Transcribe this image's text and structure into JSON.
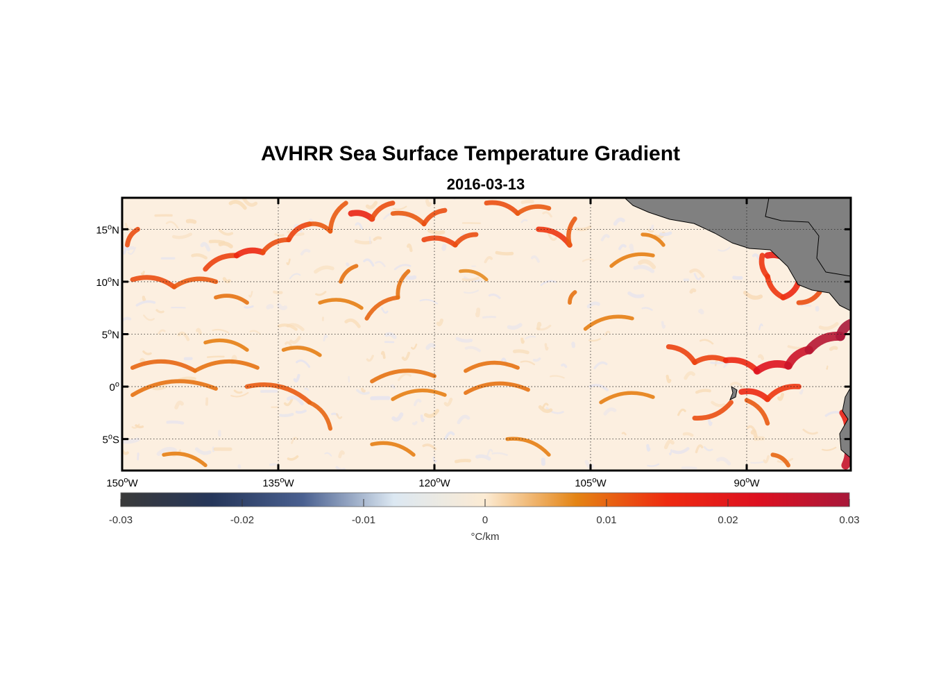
{
  "title": "AVHRR Sea Surface Temperature Gradient",
  "subtitle": "2016-03-13",
  "chart_data": {
    "type": "heatmap",
    "region": {
      "lon_range": [
        -150,
        -80
      ],
      "lat_range": [
        -8,
        18
      ]
    },
    "lon_ticks": [
      {
        "value": -150,
        "num": "150",
        "hemi": "W"
      },
      {
        "value": -135,
        "num": "135",
        "hemi": "W"
      },
      {
        "value": -120,
        "num": "120",
        "hemi": "W"
      },
      {
        "value": -105,
        "num": "105",
        "hemi": "W"
      },
      {
        "value": -90,
        "num": "90",
        "hemi": "W"
      }
    ],
    "lat_ticks": [
      {
        "value": 15,
        "num": "15",
        "hemi": "N"
      },
      {
        "value": 10,
        "num": "10",
        "hemi": "N"
      },
      {
        "value": 5,
        "num": "5",
        "hemi": "N"
      },
      {
        "value": 0,
        "num": "0",
        "hemi": ""
      },
      {
        "value": -5,
        "num": "5",
        "hemi": "S"
      }
    ],
    "grid": true,
    "colorbar": {
      "range": [
        -0.03,
        0.03
      ],
      "ticks": [
        "-0.03",
        "-0.02",
        "-0.01",
        "0",
        "0.01",
        "0.02",
        "0.03"
      ],
      "label": "°C/km",
      "placement": "bottom",
      "colors": [
        "#3a3a3a",
        "#25365a",
        "#4a6090",
        "#dce8f2",
        "#fcebd3",
        "#e48414",
        "#ee2a10",
        "#dd1020",
        "#a8183a"
      ]
    },
    "land_color": "#808080",
    "fronts": [
      {
        "lon": -149.5,
        "lat": 13.5,
        "lon2": -148.5,
        "lat2": 15.0,
        "v": 0.012
      },
      {
        "lon": -149.0,
        "lat": 10.2,
        "lon2": -145.0,
        "lat2": 9.5,
        "v": 0.012
      },
      {
        "lon": -145.0,
        "lat": 9.5,
        "lon2": -141.0,
        "lat2": 10.0,
        "v": 0.011
      },
      {
        "lon": -142.0,
        "lat": 11.2,
        "lon2": -139.0,
        "lat2": 12.5,
        "v": 0.013
      },
      {
        "lon": -139.0,
        "lat": 12.5,
        "lon2": -136.5,
        "lat2": 12.8,
        "v": 0.016
      },
      {
        "lon": -136.5,
        "lat": 12.8,
        "lon2": -134.0,
        "lat2": 14.0,
        "v": 0.012
      },
      {
        "lon": -134.0,
        "lat": 14.0,
        "lon2": -132.0,
        "lat2": 15.5,
        "v": 0.013
      },
      {
        "lon": -132.0,
        "lat": 15.5,
        "lon2": -130.0,
        "lat2": 14.8,
        "v": 0.011
      },
      {
        "lon": -130.0,
        "lat": 14.8,
        "lon2": -128.5,
        "lat2": 17.5,
        "v": 0.011
      },
      {
        "lon": -128.0,
        "lat": 16.5,
        "lon2": -126.0,
        "lat2": 16.0,
        "v": 0.017
      },
      {
        "lon": -126.0,
        "lat": 16.0,
        "lon2": -124.0,
        "lat2": 17.5,
        "v": 0.012
      },
      {
        "lon": -124.0,
        "lat": 16.5,
        "lon2": -121.0,
        "lat2": 15.5,
        "v": 0.011
      },
      {
        "lon": -121.0,
        "lat": 15.5,
        "lon2": -119.0,
        "lat2": 16.8,
        "v": 0.012
      },
      {
        "lon": -121.0,
        "lat": 14.0,
        "lon2": -118.0,
        "lat2": 13.5,
        "v": 0.013
      },
      {
        "lon": -118.0,
        "lat": 13.5,
        "lon2": -116.0,
        "lat2": 14.5,
        "v": 0.012
      },
      {
        "lon": -115.0,
        "lat": 17.5,
        "lon2": -112.0,
        "lat2": 16.5,
        "v": 0.012
      },
      {
        "lon": -112.0,
        "lat": 16.5,
        "lon2": -109.0,
        "lat2": 17.0,
        "v": 0.011
      },
      {
        "lon": -110.0,
        "lat": 15.0,
        "lon2": -107.0,
        "lat2": 13.5,
        "v": 0.014
      },
      {
        "lon": -107.0,
        "lat": 13.5,
        "lon2": -106.5,
        "lat2": 16.0,
        "v": 0.011
      },
      {
        "lon": -141.0,
        "lat": 8.5,
        "lon2": -138.0,
        "lat2": 8.0,
        "v": 0.009
      },
      {
        "lon": -131.0,
        "lat": 8.0,
        "lon2": -127.0,
        "lat2": 7.5,
        "v": 0.008
      },
      {
        "lon": -126.5,
        "lat": 6.5,
        "lon2": -123.5,
        "lat2": 8.5,
        "v": 0.01
      },
      {
        "lon": -123.5,
        "lat": 8.5,
        "lon2": -122.5,
        "lat2": 11.0,
        "v": 0.009
      },
      {
        "lon": -149.0,
        "lat": 1.8,
        "lon2": -143.0,
        "lat2": 1.5,
        "v": 0.01
      },
      {
        "lon": -143.0,
        "lat": 1.5,
        "lon2": -137.0,
        "lat2": 1.8,
        "v": 0.009
      },
      {
        "lon": -149.0,
        "lat": -0.8,
        "lon2": -141.0,
        "lat2": -0.2,
        "v": 0.009
      },
      {
        "lon": -138.0,
        "lat": 0.0,
        "lon2": -132.0,
        "lat2": -1.5,
        "v": 0.011
      },
      {
        "lon": -132.0,
        "lat": -1.5,
        "lon2": -130.0,
        "lat2": -4.0,
        "v": 0.01
      },
      {
        "lon": -142.0,
        "lat": 4.2,
        "lon2": -138.0,
        "lat2": 3.5,
        "v": 0.008
      },
      {
        "lon": -134.5,
        "lat": 3.5,
        "lon2": -131.0,
        "lat2": 3.0,
        "v": 0.008
      },
      {
        "lon": -126.0,
        "lat": 0.5,
        "lon2": -120.0,
        "lat2": 1.0,
        "v": 0.009
      },
      {
        "lon": -117.0,
        "lat": 1.5,
        "lon2": -112.0,
        "lat2": 1.8,
        "v": 0.009
      },
      {
        "lon": -117.0,
        "lat": -0.6,
        "lon2": -111.0,
        "lat2": -0.3,
        "v": 0.009
      },
      {
        "lon": -124.0,
        "lat": -1.2,
        "lon2": -119.0,
        "lat2": -0.8,
        "v": 0.008
      },
      {
        "lon": -146.0,
        "lat": -6.5,
        "lon2": -142.0,
        "lat2": -7.5,
        "v": 0.008
      },
      {
        "lon": -126.0,
        "lat": -5.5,
        "lon2": -122.0,
        "lat2": -6.5,
        "v": 0.008
      },
      {
        "lon": -113.0,
        "lat": -5.0,
        "lon2": -109.0,
        "lat2": -6.5,
        "v": 0.008
      },
      {
        "lon": -104.0,
        "lat": -1.5,
        "lon2": -99.0,
        "lat2": -1.0,
        "v": 0.008
      },
      {
        "lon": -105.5,
        "lat": 5.5,
        "lon2": -101.0,
        "lat2": 6.5,
        "v": 0.008
      },
      {
        "lon": -103.0,
        "lat": 11.5,
        "lon2": -99.0,
        "lat2": 12.5,
        "v": 0.008
      },
      {
        "lon": -107.0,
        "lat": 8.0,
        "lon2": -106.5,
        "lat2": 9.0,
        "v": 0.009
      },
      {
        "lon": -97.5,
        "lat": 3.8,
        "lon2": -95.0,
        "lat2": 2.3,
        "v": 0.013
      },
      {
        "lon": -95.0,
        "lat": 2.3,
        "lon2": -92.0,
        "lat2": 2.5,
        "v": 0.013
      },
      {
        "lon": -92.0,
        "lat": 2.5,
        "lon2": -89.0,
        "lat2": 1.5,
        "v": 0.016
      },
      {
        "lon": -89.0,
        "lat": 1.5,
        "lon2": -86.0,
        "lat2": 2.0,
        "v": 0.022
      },
      {
        "lon": -86.0,
        "lat": 2.0,
        "lon2": -84.0,
        "lat2": 3.5,
        "v": 0.025
      },
      {
        "lon": -84.0,
        "lat": 3.5,
        "lon2": -81.0,
        "lat2": 4.8,
        "v": 0.028
      },
      {
        "lon": -81.0,
        "lat": 4.8,
        "lon2": -80.0,
        "lat2": 6.0,
        "v": 0.03
      },
      {
        "lon": -90.5,
        "lat": -0.5,
        "lon2": -88.0,
        "lat2": -1.2,
        "v": 0.016
      },
      {
        "lon": -88.0,
        "lat": -1.2,
        "lon2": -85.0,
        "lat2": 0.0,
        "v": 0.014
      },
      {
        "lon": -91.5,
        "lat": -1.5,
        "lon2": -95.0,
        "lat2": -3.0,
        "v": 0.012
      },
      {
        "lon": -90.0,
        "lat": -1.3,
        "lon2": -88.0,
        "lat2": -3.5,
        "v": 0.011
      },
      {
        "lon": -88.0,
        "lat": 12.5,
        "lon2": -86.0,
        "lat2": 12.0,
        "v": 0.018
      },
      {
        "lon": -86.0,
        "lat": 12.0,
        "lon2": -85.0,
        "lat2": 10.0,
        "v": 0.018
      },
      {
        "lon": -85.0,
        "lat": 10.0,
        "lon2": -86.5,
        "lat2": 8.5,
        "v": 0.016
      },
      {
        "lon": -86.5,
        "lat": 8.5,
        "lon2": -88.0,
        "lat2": 10.5,
        "v": 0.014
      },
      {
        "lon": -88.0,
        "lat": 10.5,
        "lon2": -88.5,
        "lat2": 12.5,
        "v": 0.014
      },
      {
        "lon": -83.0,
        "lat": 9.0,
        "lon2": -85.0,
        "lat2": 8.0,
        "v": 0.012
      },
      {
        "lon": -80.8,
        "lat": -2.5,
        "lon2": -80.5,
        "lat2": -5.0,
        "v": 0.018
      },
      {
        "lon": -80.5,
        "lat": -5.0,
        "lon2": -80.5,
        "lat2": -7.5,
        "v": 0.026
      },
      {
        "lon": -87.5,
        "lat": -6.5,
        "lon2": -86.0,
        "lat2": -7.5,
        "v": 0.01
      },
      {
        "lon": -100.0,
        "lat": 14.5,
        "lon2": -98.0,
        "lat2": 13.5,
        "v": 0.008
      },
      {
        "lon": -117.5,
        "lat": 11.0,
        "lon2": -115.0,
        "lat2": 10.2,
        "v": 0.007
      },
      {
        "lon": -129.0,
        "lat": 10.0,
        "lon2": -127.5,
        "lat2": 11.5,
        "v": 0.009
      }
    ]
  }
}
